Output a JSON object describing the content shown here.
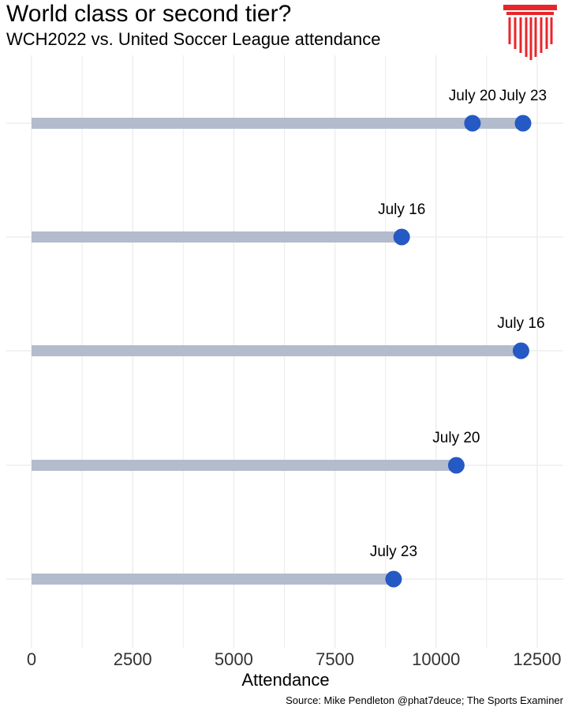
{
  "header": {
    "title": "World class or second tier?",
    "subtitle": "WCH2022 vs. United Soccer League attendance"
  },
  "footer": {
    "source": "Source: Mike Pendleton @phat7deuce; The Sports Examiner"
  },
  "logo": {
    "icon": "columned-building-icon",
    "color": "#e8262a"
  },
  "colors": {
    "bar": "#b3bccc",
    "point": "#2559c4",
    "grid": "#ebebeb"
  },
  "chart_data": {
    "type": "dumbbell",
    "xlabel": "Attendance",
    "ylabel": "",
    "xlim": [
      0,
      13200
    ],
    "xticks": [
      0,
      2500,
      5000,
      7500,
      10000,
      12500
    ],
    "grid": true,
    "rows": [
      {
        "max": 12150,
        "points": [
          {
            "x": 10900,
            "label": "July 20"
          },
          {
            "x": 12150,
            "label": "July 23"
          }
        ]
      },
      {
        "max": 9150,
        "points": [
          {
            "x": 9150,
            "label": "July 16"
          }
        ]
      },
      {
        "max": 12100,
        "points": [
          {
            "x": 12100,
            "label": "July 16"
          }
        ]
      },
      {
        "max": 10500,
        "points": [
          {
            "x": 10500,
            "label": "July 20"
          }
        ]
      },
      {
        "max": 8950,
        "points": [
          {
            "x": 8950,
            "label": "July 23"
          }
        ]
      }
    ]
  }
}
